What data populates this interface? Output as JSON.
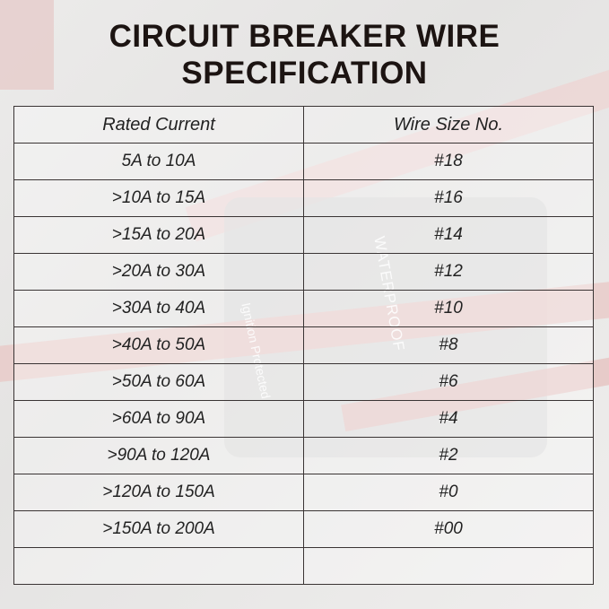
{
  "title_line1": "CIRCUIT BREAKER WIRE",
  "title_line2": "SPECIFICATION",
  "table": {
    "headers": [
      "Rated Current",
      "Wire Size No."
    ],
    "rows": [
      [
        "5A to 10A",
        "#18"
      ],
      [
        ">10A to 15A",
        "#16"
      ],
      [
        ">15A to 20A",
        "#14"
      ],
      [
        ">20A to 30A",
        "#12"
      ],
      [
        ">30A to 40A",
        "#10"
      ],
      [
        ">40A to 50A",
        "#8"
      ],
      [
        ">50A to 60A",
        "#6"
      ],
      [
        ">60A to 90A",
        "#4"
      ],
      [
        ">90A to 120A",
        "#2"
      ],
      [
        ">120A to 150A",
        "#0"
      ],
      [
        ">150A to 200A",
        "#00"
      ],
      [
        "",
        ""
      ]
    ]
  },
  "background_text": [
    "WATERPROOF",
    "Ignition Protected"
  ]
}
